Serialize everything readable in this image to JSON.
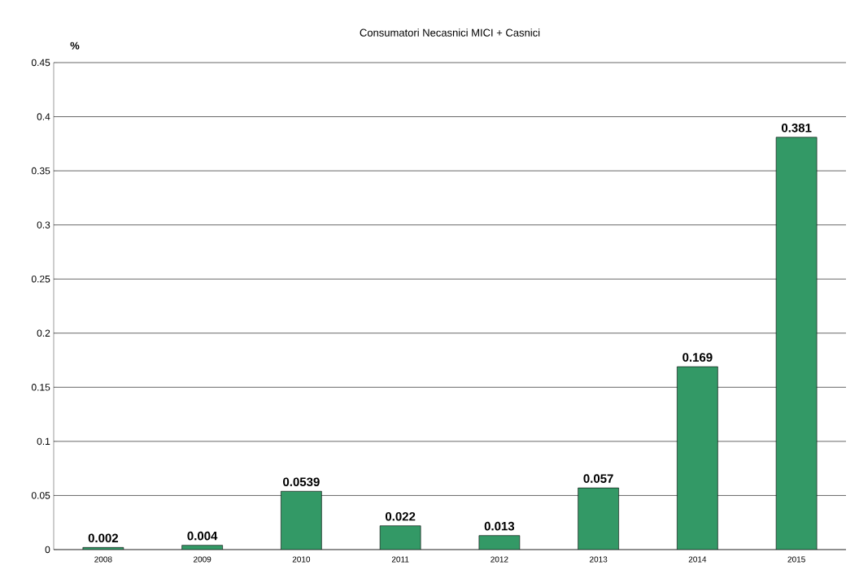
{
  "chart_data": {
    "type": "bar",
    "title": "Consumatori Necasnici MICI + Casnici",
    "ylabel": "%",
    "categories": [
      "2008",
      "2009",
      "2010",
      "2011",
      "2012",
      "2013",
      "2014",
      "2015"
    ],
    "values": [
      0.002,
      0.004,
      0.0539,
      0.022,
      0.013,
      0.057,
      0.169,
      0.381
    ],
    "color": "#339966",
    "ylim": [
      0,
      0.45
    ],
    "yticks": [
      0,
      0.05,
      0.1,
      0.15,
      0.2,
      0.25,
      0.3,
      0.35,
      0.4,
      0.45
    ],
    "grid": "y",
    "data_labels": true
  }
}
